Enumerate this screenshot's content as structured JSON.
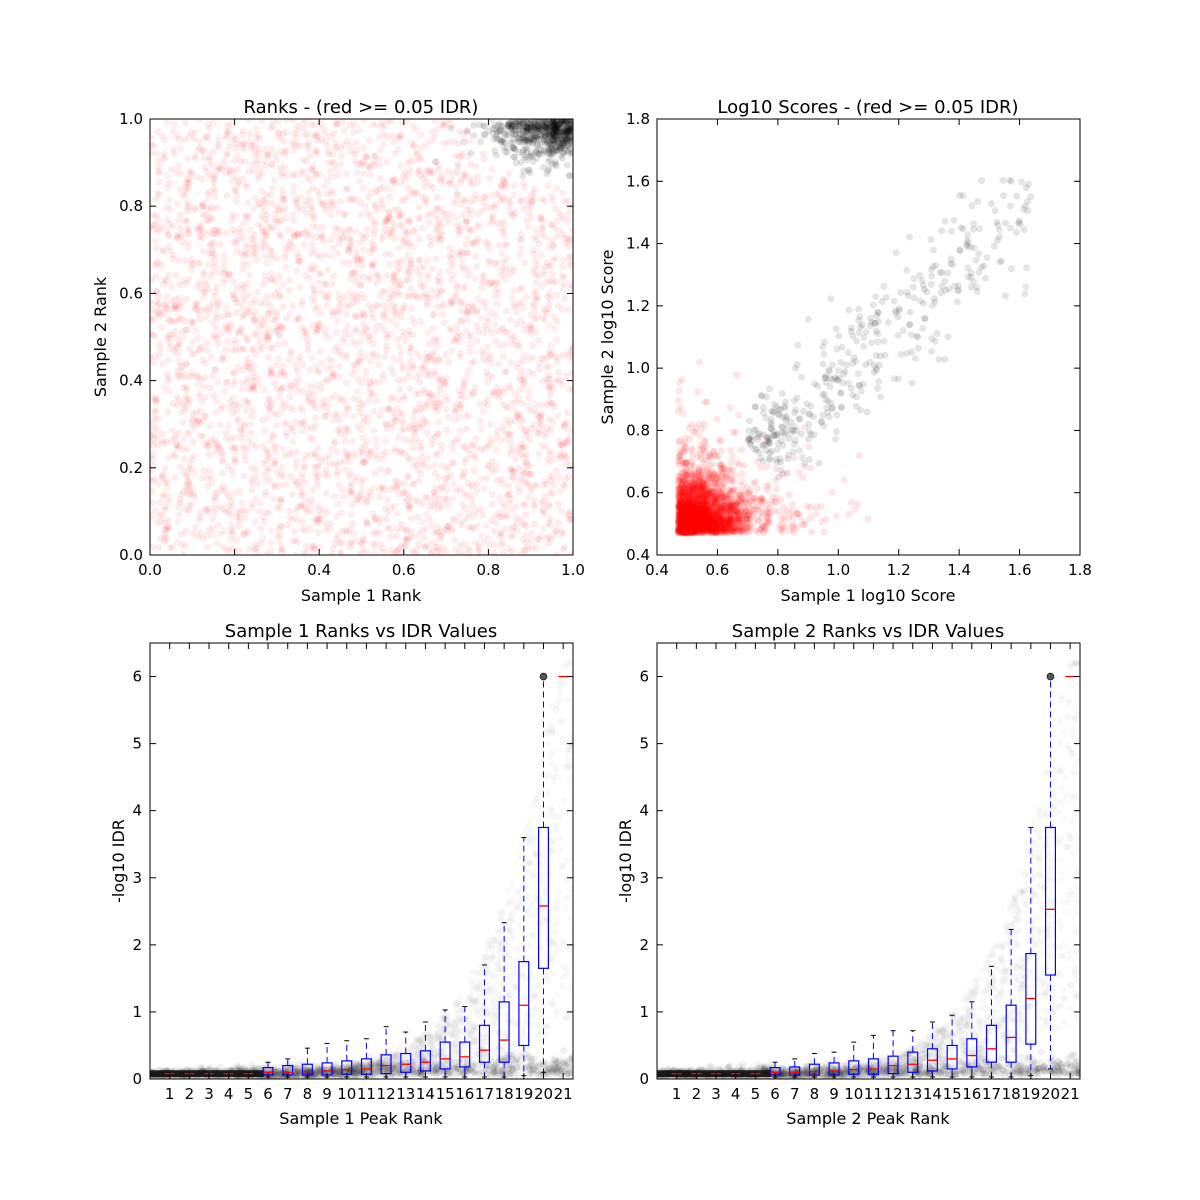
{
  "chart_data": [
    {
      "type": "scatter",
      "title": "Ranks - (red >= 0.05 IDR)",
      "xlabel": "Sample 1 Rank",
      "ylabel": "Sample 2 Rank",
      "xlim": [
        0.0,
        1.0
      ],
      "ylim": [
        0.0,
        1.0
      ],
      "xticks": [
        "0.0",
        "0.2",
        "0.4",
        "0.6",
        "0.8",
        "1.0"
      ],
      "yticks": [
        "0.0",
        "0.2",
        "0.4",
        "0.6",
        "0.8",
        "1.0"
      ],
      "series": [
        {
          "color": "#ff0000",
          "alpha": 0.07,
          "description": "uniform scatter across [0,1]x[0,1], excluding top-right corner",
          "approx_points": 3500
        },
        {
          "color": "#000000",
          "alpha": 0.1,
          "description": "dense cluster in top-right corner, x>0.75 and y>0.85, densest near (1,1)",
          "approx_points": 600
        }
      ],
      "grid": false
    },
    {
      "type": "scatter",
      "title": "Log10 Scores - (red >= 0.05 IDR)",
      "xlabel": "Sample 1 log10 Score",
      "ylabel": "Sample 2 log10 Score",
      "xlim": [
        0.4,
        1.8
      ],
      "ylim": [
        0.4,
        1.8
      ],
      "xticks": [
        "0.4",
        "0.6",
        "0.8",
        "1.0",
        "1.2",
        "1.4",
        "1.6",
        "1.8"
      ],
      "yticks": [
        "0.4",
        "0.6",
        "0.8",
        "1.0",
        "1.2",
        "1.4",
        "1.6",
        "1.8"
      ],
      "series": [
        {
          "color": "#ff0000",
          "alpha": 0.1,
          "description": "dense block from x,y = 0.47 to 0.75, thinning out to about 1.1",
          "approx_points": 2500
        },
        {
          "color": "#000000",
          "alpha": 0.1,
          "description": "sparser points with larger scores from 0.65 to 1.68",
          "approx_points": 450
        }
      ],
      "grid": false
    },
    {
      "type": "box",
      "title": "Sample 1 Ranks vs IDR Values",
      "xlabel": "Sample 1 Peak Rank",
      "ylabel": "-log10 IDR",
      "ylim": [
        0,
        6.5
      ],
      "yticks": [
        "0",
        "1",
        "2",
        "3",
        "4",
        "5",
        "6"
      ],
      "categories": [
        "1",
        "2",
        "3",
        "4",
        "5",
        "6",
        "7",
        "8",
        "9",
        "10",
        "11",
        "12",
        "13",
        "14",
        "15",
        "16",
        "17",
        "18",
        "19",
        "20",
        "21"
      ],
      "boxes": [
        {
          "q1": 0.08,
          "median": 0.08,
          "q3": 0.08,
          "whislo": 0.08,
          "whishi": 0.08
        },
        {
          "q1": 0.08,
          "median": 0.08,
          "q3": 0.08,
          "whislo": 0.08,
          "whishi": 0.08
        },
        {
          "q1": 0.08,
          "median": 0.08,
          "q3": 0.08,
          "whislo": 0.08,
          "whishi": 0.08
        },
        {
          "q1": 0.08,
          "median": 0.08,
          "q3": 0.08,
          "whislo": 0.08,
          "whishi": 0.08
        },
        {
          "q1": 0.08,
          "median": 0.08,
          "q3": 0.08,
          "whislo": 0.08,
          "whishi": 0.08
        },
        {
          "q1": 0.06,
          "median": 0.1,
          "q3": 0.17,
          "whislo": 0.03,
          "whishi": 0.25
        },
        {
          "q1": 0.06,
          "median": 0.1,
          "q3": 0.2,
          "whislo": 0.03,
          "whishi": 0.3
        },
        {
          "q1": 0.06,
          "median": 0.11,
          "q3": 0.22,
          "whislo": 0.03,
          "whishi": 0.46
        },
        {
          "q1": 0.06,
          "median": 0.12,
          "q3": 0.24,
          "whislo": 0.03,
          "whishi": 0.53
        },
        {
          "q1": 0.07,
          "median": 0.14,
          "q3": 0.27,
          "whislo": 0.03,
          "whishi": 0.57
        },
        {
          "q1": 0.07,
          "median": 0.15,
          "q3": 0.3,
          "whislo": 0.03,
          "whishi": 0.6
        },
        {
          "q1": 0.08,
          "median": 0.2,
          "q3": 0.36,
          "whislo": 0.03,
          "whishi": 0.78
        },
        {
          "q1": 0.1,
          "median": 0.22,
          "q3": 0.38,
          "whislo": 0.03,
          "whishi": 0.7
        },
        {
          "q1": 0.12,
          "median": 0.25,
          "q3": 0.42,
          "whislo": 0.03,
          "whishi": 0.85
        },
        {
          "q1": 0.15,
          "median": 0.3,
          "q3": 0.55,
          "whislo": 0.03,
          "whishi": 1.03
        },
        {
          "q1": 0.18,
          "median": 0.33,
          "q3": 0.55,
          "whislo": 0.03,
          "whishi": 1.08
        },
        {
          "q1": 0.25,
          "median": 0.43,
          "q3": 0.8,
          "whislo": 0.03,
          "whishi": 1.7
        },
        {
          "q1": 0.25,
          "median": 0.58,
          "q3": 1.15,
          "whislo": 0.03,
          "whishi": 2.33
        },
        {
          "q1": 0.5,
          "median": 1.1,
          "q3": 1.75,
          "whislo": 0.05,
          "whishi": 3.6
        },
        {
          "q1": 1.65,
          "median": 2.58,
          "q3": 3.75,
          "whislo": 0.1,
          "whishi": 6.0
        },
        {
          "q1": 6.0,
          "median": 6.0,
          "q3": 6.0,
          "whislo": 6.0,
          "whishi": 6.0
        }
      ],
      "grid": false
    },
    {
      "type": "box",
      "title": "Sample 2 Ranks vs IDR Values",
      "xlabel": "Sample 2 Peak Rank",
      "ylabel": "-log10 IDR",
      "ylim": [
        0,
        6.5
      ],
      "yticks": [
        "0",
        "1",
        "2",
        "3",
        "4",
        "5",
        "6"
      ],
      "categories": [
        "1",
        "2",
        "3",
        "4",
        "5",
        "6",
        "7",
        "8",
        "9",
        "10",
        "11",
        "12",
        "13",
        "14",
        "15",
        "16",
        "17",
        "18",
        "19",
        "20",
        "21"
      ],
      "boxes": [
        {
          "q1": 0.08,
          "median": 0.08,
          "q3": 0.08,
          "whislo": 0.08,
          "whishi": 0.08
        },
        {
          "q1": 0.08,
          "median": 0.08,
          "q3": 0.08,
          "whislo": 0.08,
          "whishi": 0.08
        },
        {
          "q1": 0.08,
          "median": 0.08,
          "q3": 0.08,
          "whislo": 0.08,
          "whishi": 0.08
        },
        {
          "q1": 0.08,
          "median": 0.08,
          "q3": 0.08,
          "whislo": 0.08,
          "whishi": 0.08
        },
        {
          "q1": 0.08,
          "median": 0.08,
          "q3": 0.08,
          "whislo": 0.08,
          "whishi": 0.08
        },
        {
          "q1": 0.06,
          "median": 0.1,
          "q3": 0.17,
          "whislo": 0.03,
          "whishi": 0.25
        },
        {
          "q1": 0.06,
          "median": 0.1,
          "q3": 0.18,
          "whislo": 0.03,
          "whishi": 0.3
        },
        {
          "q1": 0.06,
          "median": 0.11,
          "q3": 0.22,
          "whislo": 0.03,
          "whishi": 0.38
        },
        {
          "q1": 0.06,
          "median": 0.12,
          "q3": 0.24,
          "whislo": 0.03,
          "whishi": 0.4
        },
        {
          "q1": 0.07,
          "median": 0.14,
          "q3": 0.27,
          "whislo": 0.03,
          "whishi": 0.55
        },
        {
          "q1": 0.07,
          "median": 0.15,
          "q3": 0.3,
          "whislo": 0.03,
          "whishi": 0.65
        },
        {
          "q1": 0.08,
          "median": 0.2,
          "q3": 0.34,
          "whislo": 0.03,
          "whishi": 0.72
        },
        {
          "q1": 0.1,
          "median": 0.22,
          "q3": 0.4,
          "whislo": 0.03,
          "whishi": 0.72
        },
        {
          "q1": 0.12,
          "median": 0.28,
          "q3": 0.45,
          "whislo": 0.03,
          "whishi": 0.85
        },
        {
          "q1": 0.15,
          "median": 0.3,
          "q3": 0.5,
          "whislo": 0.03,
          "whishi": 0.95
        },
        {
          "q1": 0.18,
          "median": 0.35,
          "q3": 0.6,
          "whislo": 0.03,
          "whishi": 1.15
        },
        {
          "q1": 0.25,
          "median": 0.45,
          "q3": 0.8,
          "whislo": 0.03,
          "whishi": 1.68
        },
        {
          "q1": 0.25,
          "median": 0.62,
          "q3": 1.1,
          "whislo": 0.03,
          "whishi": 2.23
        },
        {
          "q1": 0.52,
          "median": 1.2,
          "q3": 1.87,
          "whislo": 0.05,
          "whishi": 3.75
        },
        {
          "q1": 1.55,
          "median": 2.53,
          "q3": 3.75,
          "whislo": 0.15,
          "whishi": 6.0
        },
        {
          "q1": 6.0,
          "median": 6.0,
          "q3": 6.0,
          "whislo": 6.0,
          "whishi": 6.0
        }
      ],
      "grid": false
    }
  ]
}
